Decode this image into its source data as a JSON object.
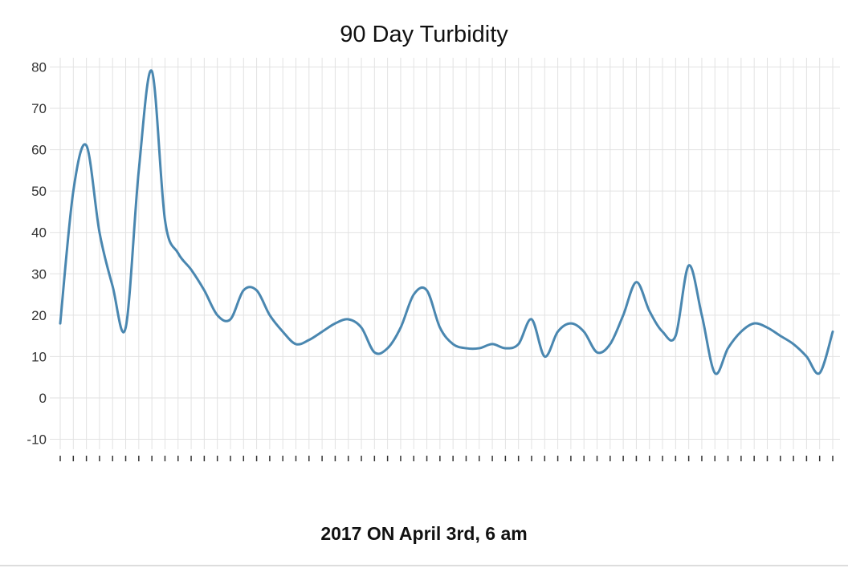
{
  "chart_data": {
    "type": "line",
    "title": "90 Day Turbidity",
    "xlabel": "",
    "ylabel": "",
    "caption": "2017 ON April 3rd, 6 am",
    "ylim": [
      -10,
      80
    ],
    "yticks": [
      -10,
      0,
      10,
      20,
      30,
      40,
      50,
      60,
      70,
      80
    ],
    "grid": true,
    "legend": "none",
    "x_count": 60,
    "series": [
      {
        "color": "#4a87b0",
        "values": [
          18,
          50,
          61,
          40,
          27,
          17,
          55,
          79,
          43,
          35,
          31,
          26,
          20,
          19,
          26,
          26,
          20,
          16,
          13,
          14,
          16,
          18,
          19,
          17,
          11,
          12,
          17,
          25,
          26,
          17,
          13,
          12,
          12,
          13,
          12,
          13,
          19,
          10,
          16,
          18,
          16,
          11,
          13,
          20,
          28,
          21,
          16,
          15,
          32,
          20,
          6,
          12,
          16,
          18,
          17,
          15,
          13,
          10,
          6,
          16
        ]
      }
    ]
  }
}
